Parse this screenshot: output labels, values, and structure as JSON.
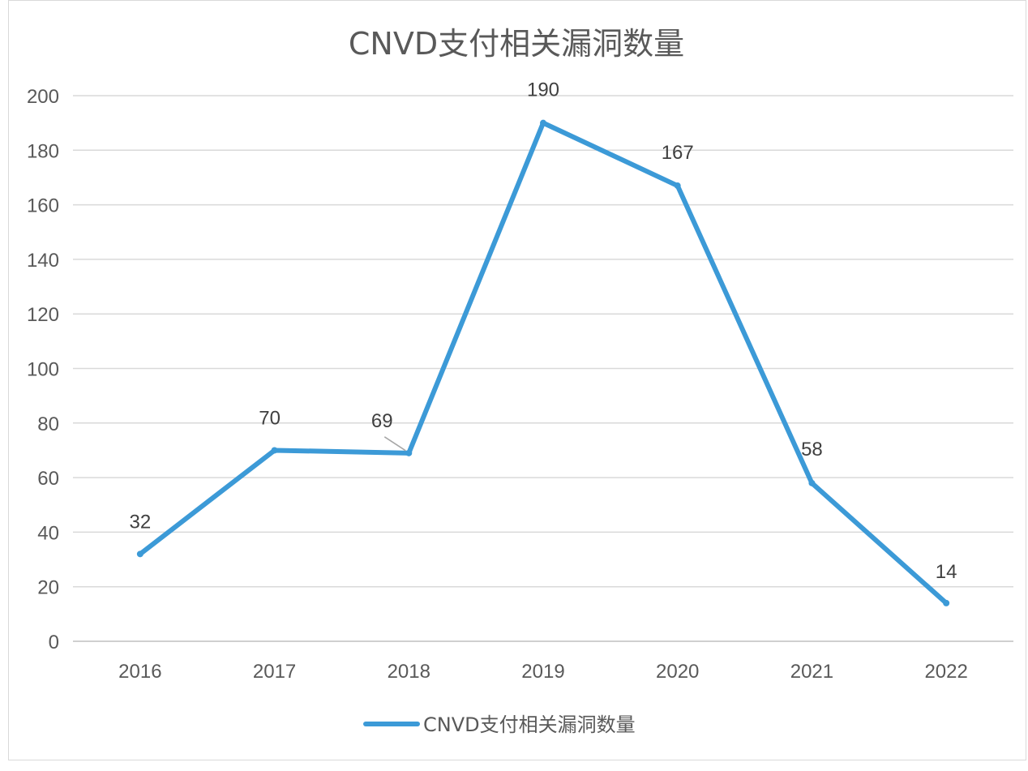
{
  "chart_data": {
    "type": "line",
    "title": "CNVD支付相关漏洞数量",
    "categories": [
      "2016",
      "2017",
      "2018",
      "2019",
      "2020",
      "2021",
      "2022"
    ],
    "series": [
      {
        "name": "CNVD支付相关漏洞数量",
        "values": [
          32,
          70,
          69,
          190,
          167,
          58,
          14
        ],
        "color": "#3c9ad7"
      }
    ],
    "ylim": [
      0,
      200
    ],
    "yticks": [
      0,
      20,
      40,
      60,
      80,
      100,
      120,
      140,
      160,
      180,
      200
    ],
    "grid": true,
    "legend": "bottom",
    "data_labels": [
      "32",
      "70",
      "69",
      "190",
      "167",
      "58",
      "14"
    ]
  }
}
